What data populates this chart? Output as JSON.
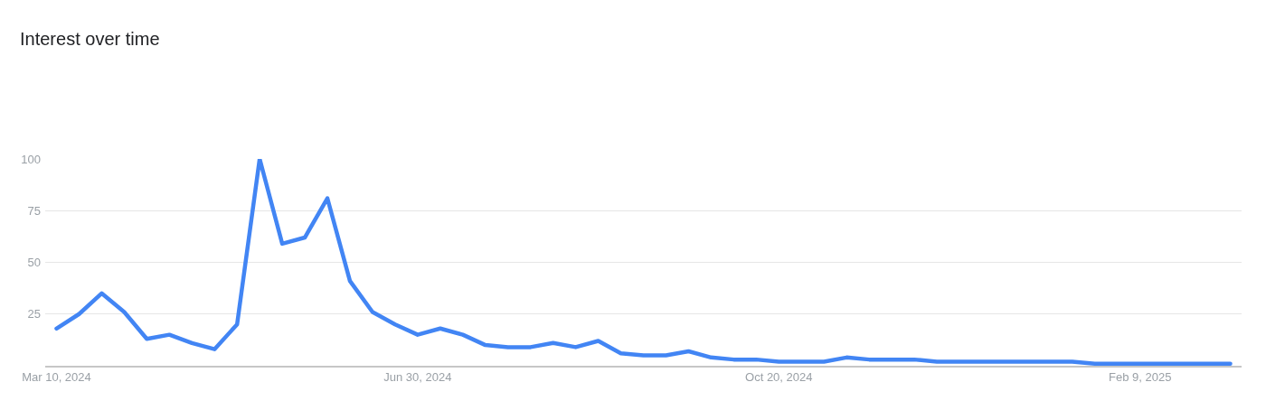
{
  "chart_data": {
    "type": "line",
    "title": "Interest over time",
    "x": [
      "2024-03-10",
      "2024-03-17",
      "2024-03-24",
      "2024-03-31",
      "2024-04-07",
      "2024-04-14",
      "2024-04-21",
      "2024-04-28",
      "2024-05-05",
      "2024-05-12",
      "2024-05-19",
      "2024-05-26",
      "2024-06-02",
      "2024-06-09",
      "2024-06-16",
      "2024-06-23",
      "2024-06-30",
      "2024-07-07",
      "2024-07-14",
      "2024-07-21",
      "2024-07-28",
      "2024-08-04",
      "2024-08-11",
      "2024-08-18",
      "2024-08-25",
      "2024-09-01",
      "2024-09-08",
      "2024-09-15",
      "2024-09-22",
      "2024-09-29",
      "2024-10-06",
      "2024-10-13",
      "2024-10-20",
      "2024-10-27",
      "2024-11-03",
      "2024-11-10",
      "2024-11-17",
      "2024-11-24",
      "2024-12-01",
      "2024-12-08",
      "2024-12-15",
      "2024-12-22",
      "2024-12-29",
      "2025-01-05",
      "2025-01-12",
      "2025-01-19",
      "2025-01-26",
      "2025-02-02",
      "2025-02-09",
      "2025-02-16",
      "2025-02-23",
      "2025-03-02",
      "2025-03-09"
    ],
    "values": [
      18,
      25,
      35,
      26,
      13,
      15,
      11,
      8,
      20,
      100,
      59,
      62,
      81,
      41,
      26,
      20,
      15,
      18,
      15,
      10,
      9,
      9,
      11,
      9,
      12,
      6,
      5,
      5,
      7,
      4,
      3,
      3,
      2,
      2,
      2,
      4,
      3,
      3,
      3,
      2,
      2,
      2,
      2,
      2,
      2,
      2,
      1,
      1,
      1,
      1,
      1,
      1,
      1
    ],
    "color": "#4285f4",
    "line_style": "solid",
    "xlim": [
      "2024-03-06T12:00",
      "2025-03-12T12:00"
    ],
    "xticks": [
      {
        "value": "2024-03-10",
        "label": "Mar 10, 2024"
      },
      {
        "value": "2024-06-30",
        "label": "Jun 30, 2024"
      },
      {
        "value": "2024-10-20",
        "label": "Oct 20, 2024"
      },
      {
        "value": "2025-02-09",
        "label": "Feb 9, 2025"
      }
    ],
    "ylim": [
      0,
      100
    ],
    "yticks": [
      25,
      50,
      75,
      100
    ],
    "grid": "y"
  }
}
